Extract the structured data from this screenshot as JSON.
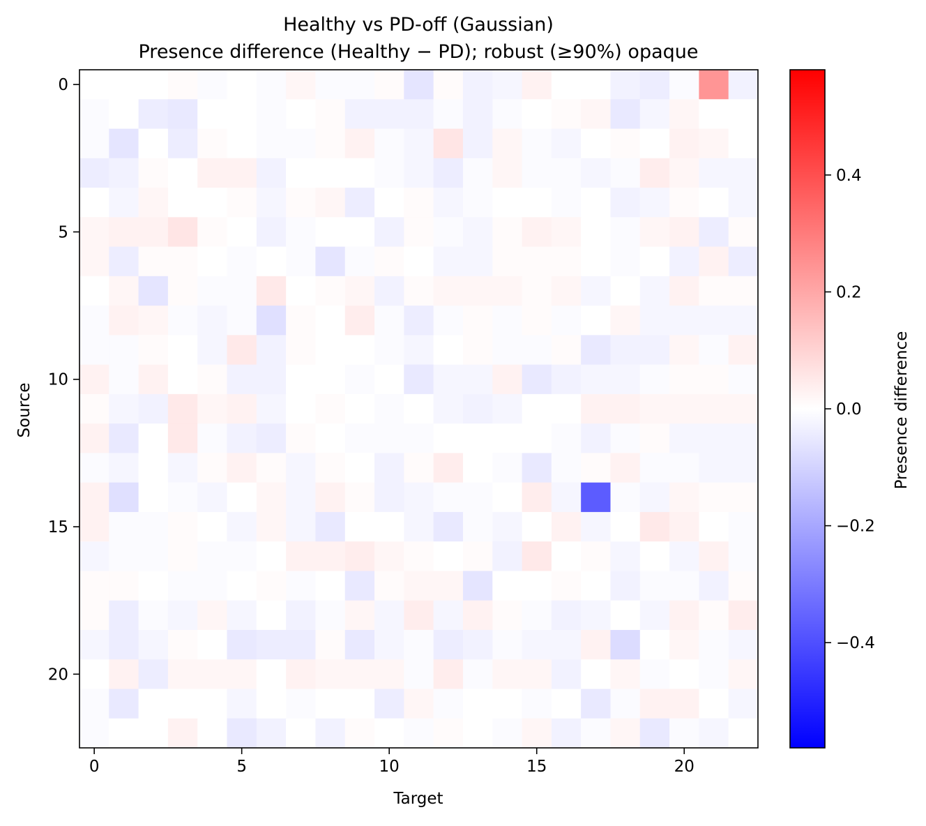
{
  "chart_data": {
    "type": "heatmap",
    "title": "Healthy vs PD-off (Gaussian)",
    "subtitle": "Presence difference (Healthy − PD); robust (≥90%) opaque",
    "xlabel": "Target",
    "ylabel": "Source",
    "colorbar_label": "Presence difference",
    "colormap": "bwr",
    "vmin": -0.58,
    "vmax": 0.58,
    "n_rows": 23,
    "n_cols": 23,
    "x_ticks": [
      0,
      5,
      10,
      15,
      20
    ],
    "y_ticks": [
      0,
      5,
      10,
      15,
      20
    ],
    "colorbar_ticks": [
      -0.4,
      -0.2,
      0.0,
      0.2,
      0.4
    ],
    "x_tick_labels": [
      "0",
      "5",
      "10",
      "15",
      "20"
    ],
    "y_tick_labels": [
      "0",
      "5",
      "10",
      "15",
      "20"
    ],
    "colorbar_tick_labels": [
      "−0.4",
      "−0.2",
      "0.0",
      "0.2",
      "0.4"
    ],
    "colors": {
      "neg": "#0000ff",
      "mid": "#ffffff",
      "pos": "#ff0000"
    },
    "values": [
      [
        0,
        0,
        0,
        0.01,
        -0.01,
        0,
        -0.01,
        0.02,
        -0.01,
        -0.01,
        0.01,
        -0.06,
        0.01,
        -0.03,
        -0.02,
        0.03,
        0,
        0,
        -0.03,
        -0.04,
        -0.01,
        0.24,
        -0.03
      ],
      [
        -0.01,
        0,
        -0.04,
        -0.05,
        0,
        0,
        -0.01,
        0,
        0.01,
        -0.03,
        -0.03,
        -0.03,
        -0.01,
        -0.03,
        -0.01,
        0,
        0.01,
        0.02,
        -0.05,
        -0.02,
        0.02,
        0,
        0
      ],
      [
        -0.01,
        -0.06,
        0,
        -0.04,
        0.01,
        0,
        -0.01,
        -0.01,
        0.01,
        0.03,
        -0.01,
        -0.02,
        0.06,
        -0.03,
        0.02,
        -0.01,
        -0.02,
        0,
        0.01,
        0,
        0.03,
        0.02,
        0
      ],
      [
        -0.04,
        -0.03,
        0.01,
        0,
        0.03,
        0.03,
        -0.03,
        0,
        0,
        0,
        -0.01,
        -0.02,
        -0.04,
        -0.01,
        0.02,
        -0.01,
        -0.01,
        -0.02,
        -0.01,
        0.04,
        0.02,
        -0.02,
        -0.02
      ],
      [
        0,
        -0.02,
        0.02,
        0,
        0,
        0.01,
        -0.02,
        0.01,
        0.02,
        -0.04,
        0,
        0.01,
        -0.02,
        -0.01,
        0,
        0,
        -0.01,
        0,
        -0.03,
        -0.02,
        0.01,
        0,
        -0.02
      ],
      [
        0.02,
        0.03,
        0.03,
        0.06,
        0.01,
        0,
        -0.03,
        -0.01,
        0,
        0,
        -0.03,
        0.01,
        -0.01,
        -0.02,
        0.01,
        0.03,
        0.02,
        0,
        -0.01,
        0.02,
        0.03,
        -0.04,
        0.01
      ],
      [
        0.02,
        -0.04,
        0.01,
        0.01,
        0,
        -0.01,
        0,
        -0.01,
        -0.06,
        -0.01,
        0.01,
        0,
        -0.02,
        -0.02,
        0.01,
        0.01,
        0.01,
        0,
        -0.01,
        0,
        -0.03,
        0.03,
        -0.04
      ],
      [
        0,
        0.02,
        -0.06,
        0.01,
        -0.01,
        -0.01,
        0.05,
        0,
        0.01,
        0.02,
        -0.03,
        0.01,
        0.02,
        0.02,
        0.02,
        0.01,
        0.02,
        -0.02,
        0,
        -0.02,
        0.03,
        0.01,
        0.01
      ],
      [
        -0.01,
        0.03,
        0.02,
        -0.01,
        -0.02,
        -0.01,
        -0.07,
        0.01,
        0,
        0.04,
        -0.01,
        -0.04,
        -0.01,
        0.01,
        -0.01,
        0.01,
        -0.01,
        0,
        0.02,
        -0.02,
        -0.02,
        -0.02,
        -0.02
      ],
      [
        -0.01,
        -0.01,
        0.01,
        0,
        -0.02,
        0.05,
        -0.03,
        0.01,
        0,
        0,
        -0.01,
        -0.02,
        0,
        0.01,
        -0.01,
        -0.01,
        0.01,
        -0.05,
        -0.03,
        -0.03,
        0.02,
        -0.01,
        0.03
      ],
      [
        0.03,
        -0.01,
        0.03,
        0,
        0.01,
        -0.03,
        -0.03,
        0,
        0,
        -0.01,
        0,
        -0.05,
        -0.02,
        -0.02,
        0.03,
        -0.05,
        -0.03,
        -0.02,
        -0.02,
        -0.01,
        0.01,
        0.01,
        -0.01
      ],
      [
        0.01,
        -0.02,
        -0.03,
        0.05,
        0.02,
        0.03,
        -0.02,
        0,
        0.01,
        0,
        -0.01,
        0,
        -0.02,
        -0.03,
        -0.02,
        0,
        0,
        0.03,
        0.03,
        0.02,
        0.02,
        0.02,
        0.02
      ],
      [
        0.03,
        -0.05,
        0,
        0.05,
        -0.01,
        -0.03,
        -0.04,
        0.01,
        0,
        -0.01,
        -0.01,
        -0.01,
        0,
        0,
        0,
        0,
        -0.01,
        -0.03,
        -0.01,
        0.01,
        -0.02,
        -0.02,
        -0.02
      ],
      [
        -0.01,
        -0.02,
        0,
        -0.02,
        0.01,
        0.03,
        0.01,
        -0.02,
        0.01,
        0,
        -0.03,
        0.01,
        0.04,
        0,
        -0.01,
        -0.05,
        -0.01,
        0.01,
        0.03,
        -0.01,
        -0.01,
        -0.02,
        -0.02
      ],
      [
        0.03,
        -0.07,
        0,
        -0.01,
        -0.02,
        0,
        0.02,
        -0.02,
        0.03,
        0.01,
        -0.03,
        -0.02,
        -0.01,
        -0.01,
        0,
        0.04,
        -0.02,
        -0.37,
        -0.01,
        -0.02,
        0.02,
        0.01,
        0.01
      ],
      [
        0.03,
        -0.01,
        -0.01,
        0.01,
        0,
        -0.02,
        0.02,
        -0.02,
        -0.05,
        0,
        0,
        -0.02,
        -0.05,
        -0.01,
        -0.02,
        0,
        0.03,
        -0.02,
        0,
        0.05,
        0.03,
        0,
        -0.01
      ],
      [
        -0.02,
        -0.01,
        -0.01,
        0.01,
        -0.01,
        -0.01,
        0,
        0.03,
        0.03,
        0.04,
        0.02,
        0.01,
        0,
        0.01,
        -0.03,
        0.05,
        0,
        0.01,
        -0.02,
        0,
        -0.02,
        0.03,
        -0.01
      ],
      [
        0.01,
        0.01,
        0,
        -0.01,
        -0.01,
        0,
        0.01,
        -0.01,
        0,
        -0.05,
        0.01,
        0.02,
        0.02,
        -0.06,
        0,
        0,
        0.01,
        0,
        -0.03,
        -0.01,
        -0.01,
        -0.03,
        0.01
      ],
      [
        0.01,
        -0.04,
        -0.01,
        -0.02,
        0.02,
        -0.02,
        0,
        -0.03,
        -0.01,
        0.02,
        -0.02,
        0.04,
        -0.02,
        0.03,
        0.01,
        -0.01,
        -0.03,
        -0.02,
        0,
        -0.02,
        0.03,
        0.01,
        0.04
      ],
      [
        -0.02,
        -0.04,
        -0.02,
        0.01,
        0,
        -0.05,
        -0.04,
        -0.04,
        0.01,
        -0.05,
        -0.02,
        -0.01,
        -0.04,
        -0.03,
        -0.01,
        -0.02,
        -0.02,
        0.03,
        -0.08,
        0,
        0.02,
        -0.01,
        -0.02
      ],
      [
        0,
        0.03,
        -0.04,
        0.02,
        0.02,
        0.02,
        0,
        0.03,
        0.02,
        0.02,
        0.02,
        -0.01,
        0.04,
        -0.01,
        0.02,
        0.02,
        -0.03,
        0,
        0.02,
        -0.01,
        0,
        -0.01,
        0.02
      ],
      [
        -0.01,
        -0.05,
        0,
        0,
        0,
        -0.02,
        0,
        -0.01,
        0,
        0,
        -0.04,
        0.02,
        -0.01,
        0,
        0,
        -0.01,
        0,
        -0.05,
        -0.01,
        0.03,
        0.03,
        0,
        -0.02
      ],
      [
        -0.01,
        0,
        0,
        0.03,
        0,
        -0.05,
        -0.03,
        0,
        -0.03,
        0.01,
        0,
        -0.01,
        0.01,
        0,
        -0.01,
        0.02,
        -0.03,
        -0.01,
        0.02,
        -0.05,
        -0.01,
        -0.02,
        0
      ]
    ]
  }
}
